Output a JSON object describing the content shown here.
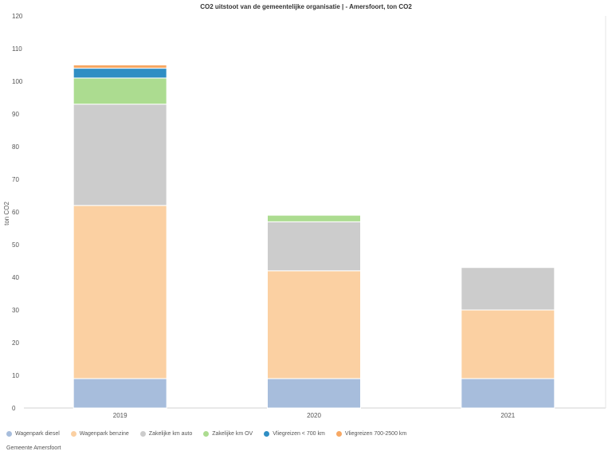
{
  "chart_data": {
    "type": "bar",
    "stacked": true,
    "title": "CO2 uitstoot van de gemeentelijke organisatie | - Amersfoort, ton CO2",
    "ylabel": "ton CO2",
    "xlabel": "",
    "ylim": [
      0,
      120
    ],
    "yticks": [
      0,
      10,
      20,
      30,
      40,
      50,
      60,
      70,
      80,
      90,
      100,
      110,
      120
    ],
    "categories": [
      "2019",
      "2020",
      "2021"
    ],
    "series": [
      {
        "name": "Wagenpark diesel",
        "color": "#a7bddc",
        "values": [
          9,
          9,
          9
        ]
      },
      {
        "name": "Wagenpark benzine",
        "color": "#fbd0a2",
        "values": [
          53,
          33,
          21
        ]
      },
      {
        "name": "Zakelijke km auto",
        "color": "#cccccc",
        "values": [
          31,
          15,
          13
        ]
      },
      {
        "name": "Zakelijke km OV",
        "color": "#acdc90",
        "values": [
          8,
          2,
          0
        ]
      },
      {
        "name": "Vliegreizen < 700 km",
        "color": "#2f8ec4",
        "values": [
          3,
          0,
          0
        ]
      },
      {
        "name": "Vliegreizen 700-2500 km",
        "color": "#f7a864",
        "values": [
          1,
          0,
          0
        ]
      }
    ],
    "legend_position": "bottom-left",
    "grid": false
  },
  "source": "Gemeente Amersfoort"
}
